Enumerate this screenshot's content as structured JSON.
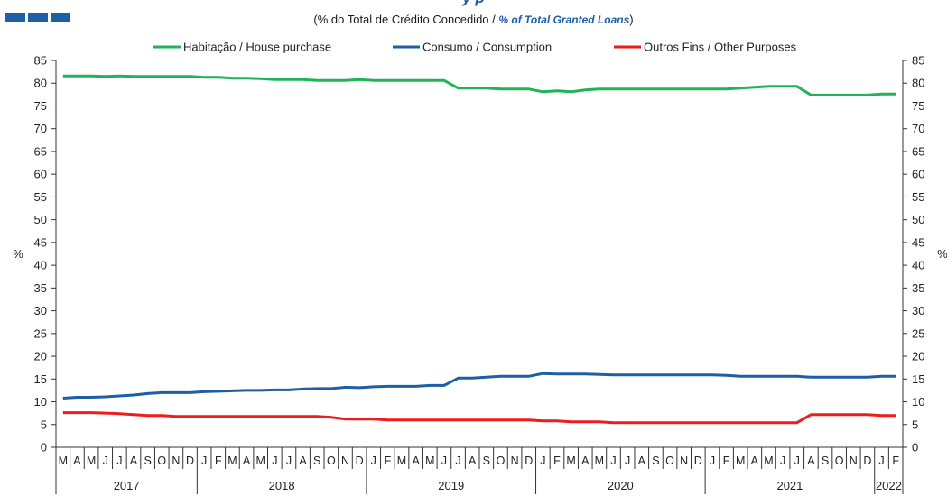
{
  "logo": {
    "colors": [
      "#1f5fa6",
      "#1f5fa6",
      "#1f5fa6"
    ]
  },
  "header": {
    "title_partial": "y p",
    "subtitle_pt": "(% do Total de Crédito Concedido / ",
    "subtitle_en": "% of  Total Granted Loans",
    "subtitle_close": ")"
  },
  "chart_data": {
    "type": "line",
    "ylabel_left": "%",
    "ylabel_right": "%",
    "ylim": [
      0,
      85
    ],
    "yticks": [
      0,
      5,
      10,
      15,
      20,
      25,
      30,
      35,
      40,
      45,
      50,
      55,
      60,
      65,
      70,
      75,
      80,
      85
    ],
    "month_labels": [
      "M",
      "A",
      "M",
      "J",
      "J",
      "A",
      "S",
      "O",
      "N",
      "D",
      "J",
      "F",
      "M",
      "A",
      "M",
      "J",
      "J",
      "A",
      "S",
      "O",
      "N",
      "D",
      "J",
      "F",
      "M",
      "A",
      "M",
      "J",
      "J",
      "A",
      "S",
      "O",
      "N",
      "D",
      "J",
      "F",
      "M",
      "A",
      "M",
      "J",
      "J",
      "A",
      "S",
      "O",
      "N",
      "D",
      "J",
      "F",
      "M",
      "A",
      "M",
      "J",
      "J",
      "A",
      "S",
      "O",
      "N",
      "D",
      "J",
      "F"
    ],
    "year_labels": [
      {
        "label": "2017",
        "start": 0,
        "count": 10
      },
      {
        "label": "2018",
        "start": 10,
        "count": 12
      },
      {
        "label": "2019",
        "start": 22,
        "count": 12
      },
      {
        "label": "2020",
        "start": 34,
        "count": 12
      },
      {
        "label": "2021",
        "start": 46,
        "count": 12
      },
      {
        "label": "2022",
        "start": 58,
        "count": 2
      }
    ],
    "legend_position": "top",
    "series": [
      {
        "name": "Habitação / House purchase",
        "color": "#1fb45a",
        "values": [
          81.6,
          81.6,
          81.6,
          81.5,
          81.6,
          81.5,
          81.5,
          81.5,
          81.5,
          81.5,
          81.3,
          81.3,
          81.1,
          81.1,
          81.0,
          80.8,
          80.8,
          80.8,
          80.6,
          80.6,
          80.6,
          80.8,
          80.6,
          80.6,
          80.6,
          80.6,
          80.6,
          80.6,
          78.9,
          78.9,
          78.9,
          78.7,
          78.7,
          78.7,
          78.1,
          78.3,
          78.1,
          78.5,
          78.7,
          78.7,
          78.7,
          78.7,
          78.7,
          78.7,
          78.7,
          78.7,
          78.7,
          78.7,
          78.9,
          79.1,
          79.3,
          79.3,
          79.3,
          77.4,
          77.4,
          77.4,
          77.4,
          77.4,
          77.6,
          77.6
        ]
      },
      {
        "name": "Consumo / Consumption",
        "color": "#1d5fa5",
        "values": [
          10.8,
          11.0,
          11.0,
          11.1,
          11.3,
          11.5,
          11.8,
          12.0,
          12.0,
          12.0,
          12.2,
          12.3,
          12.4,
          12.5,
          12.5,
          12.6,
          12.6,
          12.8,
          12.9,
          12.9,
          13.2,
          13.1,
          13.3,
          13.4,
          13.4,
          13.4,
          13.6,
          13.6,
          15.2,
          15.2,
          15.4,
          15.6,
          15.6,
          15.6,
          16.2,
          16.1,
          16.1,
          16.1,
          16.0,
          15.9,
          15.9,
          15.9,
          15.9,
          15.9,
          15.9,
          15.9,
          15.9,
          15.8,
          15.6,
          15.6,
          15.6,
          15.6,
          15.6,
          15.4,
          15.4,
          15.4,
          15.4,
          15.4,
          15.6,
          15.6
        ]
      },
      {
        "name": "Outros Fins / Other Purposes",
        "color": "#ee1c1c",
        "values": [
          7.6,
          7.6,
          7.6,
          7.5,
          7.4,
          7.2,
          7.0,
          7.0,
          6.8,
          6.8,
          6.8,
          6.8,
          6.8,
          6.8,
          6.8,
          6.8,
          6.8,
          6.8,
          6.8,
          6.6,
          6.2,
          6.2,
          6.2,
          6.0,
          6.0,
          6.0,
          6.0,
          6.0,
          6.0,
          6.0,
          6.0,
          6.0,
          6.0,
          6.0,
          5.8,
          5.8,
          5.6,
          5.6,
          5.6,
          5.4,
          5.4,
          5.4,
          5.4,
          5.4,
          5.4,
          5.4,
          5.4,
          5.4,
          5.4,
          5.4,
          5.4,
          5.4,
          5.4,
          7.2,
          7.2,
          7.2,
          7.2,
          7.2,
          7.0,
          7.0
        ]
      }
    ]
  }
}
